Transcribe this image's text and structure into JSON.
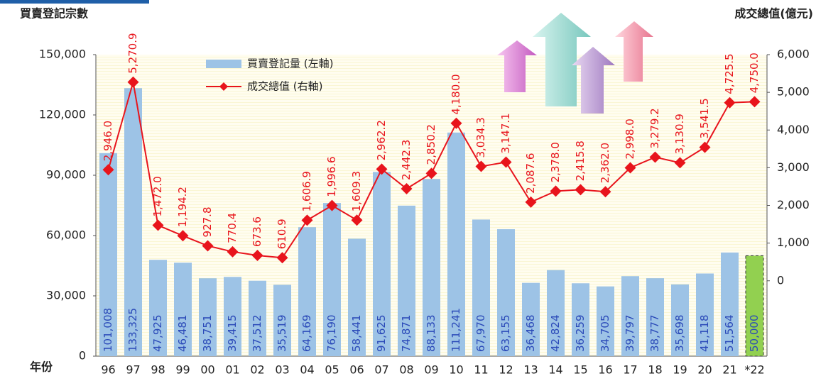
{
  "chart_data": {
    "type": "combo",
    "y_label": "買賣登記宗數",
    "y2_label": "成交總值(億元)",
    "x_label": "年份",
    "categories": [
      "96",
      "97",
      "98",
      "99",
      "00",
      "01",
      "02",
      "03",
      "04",
      "05",
      "06",
      "07",
      "08",
      "09",
      "10",
      "11",
      "12",
      "13",
      "14",
      "15",
      "16",
      "17",
      "18",
      "19",
      "20",
      "21",
      "*22"
    ],
    "ylim": [
      0,
      150000
    ],
    "yticks": [
      0,
      {
        "value": 30000,
        "label": "30,000"
      },
      {
        "value": 60000,
        "label": "60,000"
      },
      {
        "value": 90000,
        "label": "90,000"
      },
      {
        "value": 120000,
        "label": "120,000"
      },
      {
        "value": 150000,
        "label": "150,000"
      }
    ],
    "y2lim": [
      -2000,
      6000
    ],
    "y2ticks": [
      0,
      {
        "value": 1000,
        "label": "1,000"
      },
      {
        "value": 2000,
        "label": "2,000"
      },
      {
        "value": 3000,
        "label": "3,000"
      },
      {
        "value": 4000,
        "label": "4,000"
      },
      {
        "value": 5000,
        "label": "5,000"
      },
      {
        "value": 6000,
        "label": "6,000"
      }
    ],
    "series": [
      {
        "name": "買賣登記量 (左軸)",
        "type": "bar",
        "color": "#9dc3e6",
        "colors": [
          "#9dc3e6",
          "#9dc3e6",
          "#9dc3e6",
          "#9dc3e6",
          "#9dc3e6",
          "#9dc3e6",
          "#9dc3e6",
          "#9dc3e6",
          "#9dc3e6",
          "#9dc3e6",
          "#9dc3e6",
          "#9dc3e6",
          "#9dc3e6",
          "#9dc3e6",
          "#9dc3e6",
          "#9dc3e6",
          "#9dc3e6",
          "#9dc3e6",
          "#9dc3e6",
          "#9dc3e6",
          "#9dc3e6",
          "#9dc3e6",
          "#9dc3e6",
          "#9dc3e6",
          "#9dc3e6",
          "#9dc3e6",
          "#92d050"
        ],
        "values": [
          101008,
          133325,
          47925,
          46481,
          38751,
          39415,
          37512,
          35519,
          64169,
          76190,
          58441,
          91625,
          74871,
          88133,
          111241,
          67970,
          63155,
          36468,
          42824,
          36259,
          34705,
          39797,
          38777,
          35698,
          41118,
          51564,
          50000
        ],
        "value_labels": [
          "101,008",
          "133,325",
          "47,925",
          "46,481",
          "38,751",
          "39,415",
          "37,512",
          "35,519",
          "64,169",
          "76,190",
          "58,441",
          "91,625",
          "74,871",
          "88,133",
          "111,241",
          "67,970",
          "63,155",
          "36,468",
          "42,824",
          "36,259",
          "34,705",
          "39,797",
          "38,777",
          "35,698",
          "41,118",
          "51,564",
          "50,000"
        ]
      },
      {
        "name": "成交總值 (右軸)",
        "type": "line",
        "axis": "y2",
        "color": "#e8141c",
        "values": [
          2946.0,
          5270.9,
          1472.0,
          1194.2,
          927.8,
          770.4,
          673.6,
          610.9,
          1606.9,
          1996.6,
          1609.3,
          2962.2,
          2442.3,
          2850.2,
          4180.0,
          3034.3,
          3147.1,
          2087.6,
          2378.0,
          2415.8,
          2362.0,
          2998.0,
          3279.2,
          3130.9,
          3541.5,
          4725.5,
          4750.0
        ],
        "value_labels": [
          "2,946.0",
          "5,270.9",
          "1,472.0",
          "1,194.2",
          "927.8",
          "770.4",
          "673.6",
          "610.9",
          "1,606.9",
          "1,996.6",
          "1,609.3",
          "2,962.2",
          "2,442.3",
          "2,850.2",
          "4,180.0",
          "3,034.3",
          "3,147.1",
          "2,087.6",
          "2,378.0",
          "2,415.8",
          "2,362.0",
          "2,998.0",
          "3,279.2",
          "3,130.9",
          "3,541.5",
          "4,725.5",
          "4,750.0"
        ]
      }
    ]
  }
}
